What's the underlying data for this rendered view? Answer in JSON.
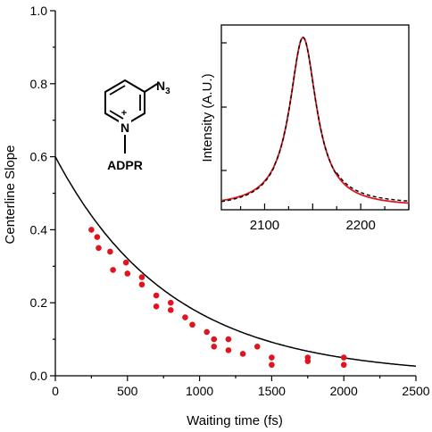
{
  "chart_data": [
    {
      "type": "scatter",
      "xlabel": "Waiting time (fs)",
      "ylabel": "Centerline Slope",
      "xlim": [
        0,
        2500
      ],
      "ylim": [
        0,
        1.0
      ],
      "xticks": [
        "0",
        "500",
        "1000",
        "1500",
        "2000",
        "2500"
      ],
      "yticks": [
        "0.0",
        "0.2",
        "0.4",
        "0.6",
        "0.8",
        "1.0"
      ],
      "grid": false,
      "marker_color": "#e0141e",
      "points": [
        [
          250,
          0.4
        ],
        [
          290,
          0.38
        ],
        [
          300,
          0.35
        ],
        [
          380,
          0.34
        ],
        [
          400,
          0.29
        ],
        [
          490,
          0.31
        ],
        [
          500,
          0.28
        ],
        [
          600,
          0.27
        ],
        [
          600,
          0.25
        ],
        [
          700,
          0.22
        ],
        [
          700,
          0.19
        ],
        [
          800,
          0.2
        ],
        [
          800,
          0.18
        ],
        [
          900,
          0.16
        ],
        [
          950,
          0.14
        ],
        [
          1050,
          0.12
        ],
        [
          1100,
          0.1
        ],
        [
          1100,
          0.08
        ],
        [
          1200,
          0.1
        ],
        [
          1200,
          0.07
        ],
        [
          1300,
          0.06
        ],
        [
          1400,
          0.08
        ],
        [
          1500,
          0.05
        ],
        [
          1500,
          0.03
        ],
        [
          1750,
          0.05
        ],
        [
          1750,
          0.04
        ],
        [
          2000,
          0.05
        ],
        [
          2000,
          0.03
        ]
      ],
      "fit": {
        "type": "exponential",
        "amplitude": 0.6,
        "tau": 800,
        "color": "#000000"
      },
      "molecule": {
        "substituent": "N",
        "substituent_subscript": "3",
        "ring_n": "N",
        "charge": "+",
        "label": "ADPR"
      }
    },
    {
      "type": "line",
      "ylabel": "Intensity (A.U.)",
      "xlim": [
        2055,
        2250
      ],
      "xticks": [
        "2100",
        "2200"
      ],
      "series": [
        {
          "kind": "measured",
          "color": "#000000",
          "style": "dashed",
          "center": 2140,
          "hwhm": 17
        },
        {
          "kind": "fit",
          "color": "#e0141e",
          "style": "solid",
          "center": 2140,
          "hwhm": 17
        }
      ]
    }
  ]
}
